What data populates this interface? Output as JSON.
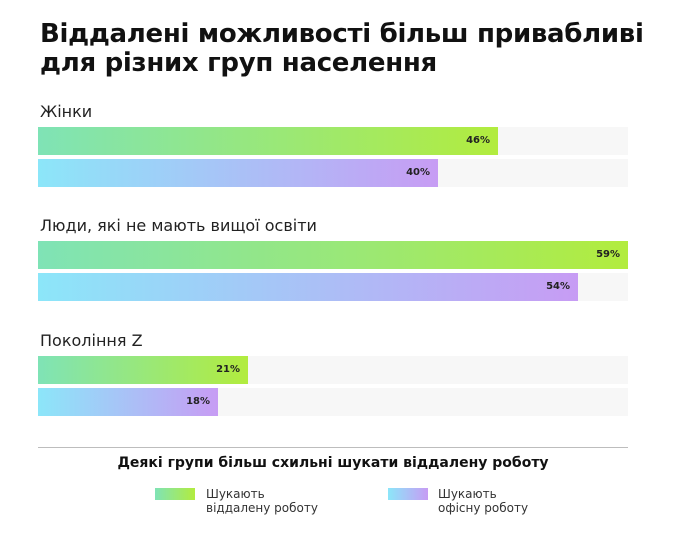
{
  "title": "Віддалені можливості більш привабливі для різних груп населення",
  "footer_title": "Деякі групи більш схильні шукати віддалену роботу",
  "colors": {
    "remote_start": "#7fe3b6",
    "remote_end": "#b2ec3e",
    "office_start": "#8ce6f9",
    "office_end": "#c79cf4"
  },
  "chart_data": {
    "type": "bar",
    "orientation": "horizontal",
    "categories": [
      "Жінки",
      "Люди, які не мають вищої освіти",
      "Покоління Z"
    ],
    "series": [
      {
        "name": "Шукають віддалену роботу",
        "values": [
          46,
          59,
          21
        ],
        "labels": [
          "46%",
          "59%",
          "21%"
        ]
      },
      {
        "name": "Шукають офісну роботу",
        "values": [
          40,
          54,
          18
        ],
        "labels": [
          "40%",
          "54%",
          "18%"
        ]
      }
    ],
    "xlim": [
      0,
      59
    ],
    "unit": "%",
    "legend": "bottom",
    "grid": false
  },
  "legend": {
    "remote": {
      "line1": "Шукають",
      "line2": "віддалену роботу"
    },
    "office": {
      "line1": "Шукають",
      "line2": "офісну роботу"
    }
  }
}
